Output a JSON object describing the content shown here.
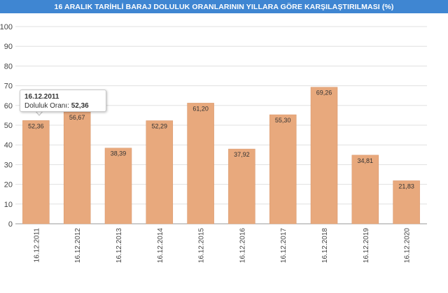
{
  "title": "16 ARALIK TARİHLİ BARAJ DOLULUK ORANLARININ YILLARA GÖRE KARŞILAŞTIRILMASI (%)",
  "colors": {
    "header_bg": "#3f86d2",
    "bar": "#e8a97d",
    "bar_stroke": "#d89468",
    "grid": "#e0e0e0"
  },
  "tooltip": {
    "date": "16.12.2011",
    "label": "Doluluk Oranı:",
    "value": "52,36"
  },
  "chart_data": {
    "type": "bar",
    "title": "16 ARALIK TARİHLİ BARAJ DOLULUK ORANLARININ YILLARA GÖRE KARŞILAŞTIRILMASI (%)",
    "categories": [
      "16.12.2011",
      "16.12.2012",
      "16.12.2013",
      "16.12.2014",
      "16.12.2015",
      "16.12.2016",
      "16.12.2017",
      "16.12.2018",
      "16.12.2019",
      "16.12.2020"
    ],
    "values": [
      52.36,
      56.67,
      38.39,
      52.29,
      61.2,
      37.92,
      55.3,
      69.26,
      34.81,
      21.83
    ],
    "data_labels": [
      "52,36",
      "56,67",
      "38,39",
      "52,29",
      "61,20",
      "37,92",
      "55,30",
      "69,26",
      "34,81",
      "21,83"
    ],
    "yticks": [
      "0",
      "10",
      "20",
      "30",
      "40",
      "50",
      "60",
      "70",
      "80",
      "90",
      "100"
    ],
    "ylim": [
      0,
      100
    ],
    "grid": true,
    "legend": "none"
  }
}
